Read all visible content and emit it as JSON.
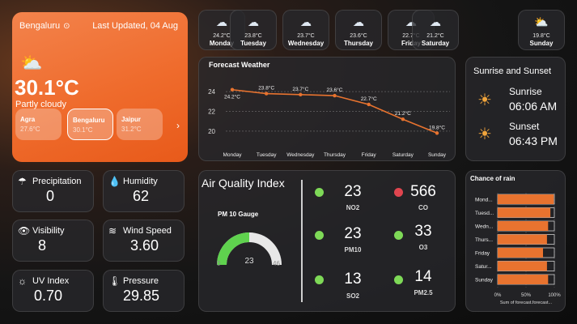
{
  "city_card": {
    "location": "Bengaluru",
    "last_updated": "Last Updated, 04 Aug",
    "temperature": "30.1°C",
    "condition": "Partly cloudy",
    "cities": [
      {
        "name": "Agra",
        "temp": "27.6°C"
      },
      {
        "name": "Bengaluru",
        "temp": "30.1°C"
      },
      {
        "name": "Jaipur",
        "temp": "31.2°C"
      }
    ]
  },
  "forecast_days": [
    {
      "temp": "24.2°C",
      "day": "Monday",
      "icon": "cloud-rain-icon"
    },
    {
      "temp": "23.8°C",
      "day": "Tuesday",
      "icon": "cloud-rain-icon"
    },
    {
      "temp": "23.7°C",
      "day": "Wednesday",
      "icon": "cloud-rain-icon"
    },
    {
      "temp": "23.6°C",
      "day": "Thursday",
      "icon": "cloud-rain-icon"
    },
    {
      "temp": "22.7°C",
      "day": "Friday",
      "icon": "cloud-rain-icon"
    },
    {
      "temp": "21.2°C",
      "day": "Saturday",
      "icon": "cloud-rain-icon"
    },
    {
      "temp": "19.8°C",
      "day": "Sunday",
      "icon": "partly-sunny-icon"
    }
  ],
  "sun": {
    "title": "Sunrise and Sunset",
    "sunrise_label": "Sunrise",
    "sunrise": "06:06 AM",
    "sunset_label": "Sunset",
    "sunset": "06:43 PM"
  },
  "metrics": {
    "precipitation": {
      "label": "Precipitation",
      "value": "0"
    },
    "humidity": {
      "label": "Humidity",
      "value": "62"
    },
    "visibility": {
      "label": "Visibility",
      "value": "8"
    },
    "wind": {
      "label": "Wind Speed",
      "value": "3.60"
    },
    "uv": {
      "label": "UV Index",
      "value": "0.70"
    },
    "pressure": {
      "label": "Pressure",
      "value": "29.85"
    }
  },
  "aqi": {
    "title": "Air Quality Index",
    "gauge_title": "PM 10 Gauge",
    "gauge_value": "23",
    "gauge_min": "0",
    "gauge_max": "46",
    "items": [
      {
        "value": "23",
        "name": "NO2",
        "color": "#7ed957"
      },
      {
        "value": "566",
        "name": "CO",
        "color": "#e0454f"
      },
      {
        "value": "23",
        "name": "PM10",
        "color": "#7ed957"
      },
      {
        "value": "33",
        "name": "O3",
        "color": "#7ed957"
      },
      {
        "value": "13",
        "name": "SO2",
        "color": "#7ed957"
      },
      {
        "value": "14",
        "name": "PM2.5",
        "color": "#7ed957"
      }
    ]
  },
  "chart_data": [
    {
      "type": "line",
      "title": "Forecast Weather",
      "categories": [
        "Monday",
        "Tuesday",
        "Wednesday",
        "Thursday",
        "Friday",
        "Saturday",
        "Sunday"
      ],
      "values": [
        24.2,
        23.8,
        23.7,
        23.6,
        22.7,
        21.2,
        19.8
      ],
      "labels": [
        "24.2°C",
        "23.8°C",
        "23.7°C",
        "23.6°C",
        "22.7°C",
        "21.2°C",
        "19.8°C"
      ],
      "yticks": [
        "24",
        "22",
        "20"
      ],
      "ylim": [
        19,
        25
      ],
      "grid": true,
      "color": "#e8732f"
    },
    {
      "type": "bar",
      "title": "Chance of rain",
      "categories": [
        "Mond...",
        "Tuesd...",
        "Wedn...",
        "Thurs...",
        "Friday",
        "Satur...",
        "Sunday"
      ],
      "values": [
        99,
        93,
        89,
        87,
        80,
        87,
        89
      ],
      "xticks": [
        "0%",
        "50%",
        "100%"
      ],
      "xlim": [
        0,
        100
      ],
      "xlabel": "Sum of forecast.forecast...",
      "color": "#e8732f"
    }
  ]
}
